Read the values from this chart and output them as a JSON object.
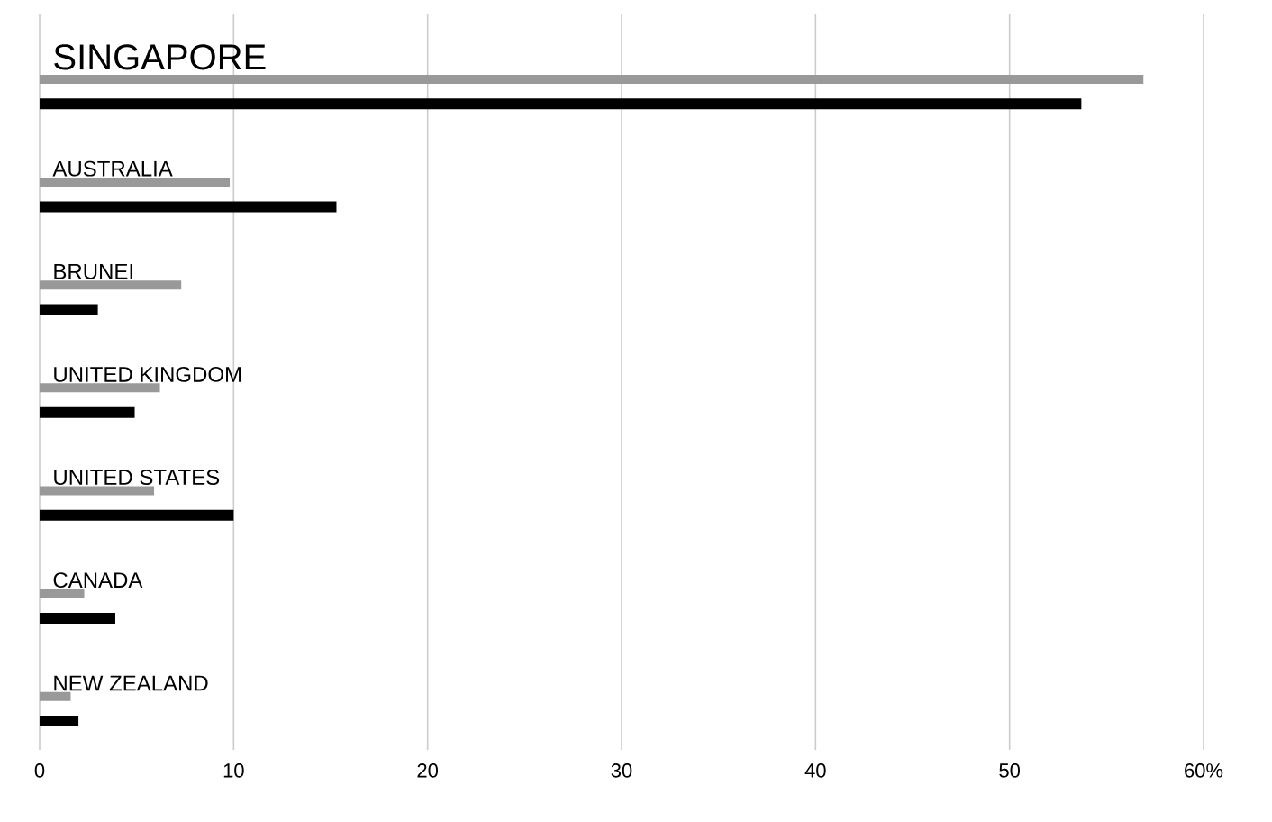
{
  "chart_data": {
    "type": "bar",
    "orientation": "horizontal",
    "categories": [
      "SINGAPORE",
      "AUSTRALIA",
      "BRUNEI",
      "UNITED KINGDOM",
      "UNITED STATES",
      "CANADA",
      "NEW ZEALAND"
    ],
    "series": [
      {
        "color": "#999999",
        "values": [
          56.9,
          9.8,
          7.3,
          6.2,
          5.9,
          2.3,
          1.6
        ]
      },
      {
        "color": "#000000",
        "values": [
          53.7,
          15.3,
          3.0,
          4.9,
          10.0,
          3.9,
          2.0
        ]
      }
    ],
    "xlim": [
      0,
      60
    ],
    "xticks": [
      0,
      10,
      20,
      30,
      40,
      50,
      {
        "value": 60,
        "label": "60%"
      }
    ],
    "grid": "x"
  }
}
